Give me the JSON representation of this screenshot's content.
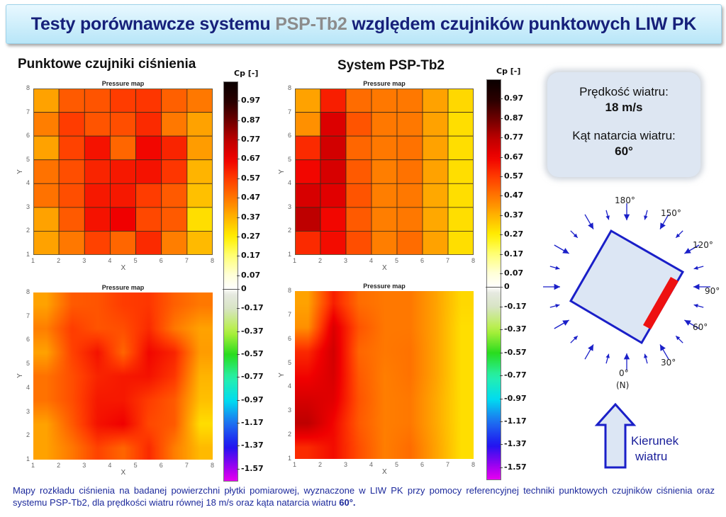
{
  "banner": {
    "title_part1": "Testy porównawcze systemu ",
    "title_highlight": "PSP-Tb2",
    "title_part2": " względem czujników punktowych LIW PK"
  },
  "left_panel": {
    "heading": "Punktowe czujniki ciśnienia"
  },
  "mid_panel": {
    "heading": "System PSP-Tb2"
  },
  "colorbar": {
    "title": "Cp [-]",
    "labels": [
      "0.97",
      "0.87",
      "0.77",
      "0.67",
      "0.57",
      "0.47",
      "0.37",
      "0.27",
      "0.17",
      "0.07",
      "0",
      "-0.17",
      "-0.37",
      "-0.57",
      "-0.77",
      "-0.97",
      "-1.17",
      "-1.37",
      "-1.57"
    ],
    "range": [
      -1.67,
      1.07
    ]
  },
  "info_box": {
    "speed_label": "Prędkość wiatru:",
    "speed_value": "18 m/s",
    "angle_label": "Kąt natarcia wiatru:",
    "angle_value": "60°"
  },
  "compass": {
    "labels": {
      "a180": "180°",
      "a150": "150°",
      "a120": "120°",
      "a90": "90°",
      "a60": "60°",
      "a30": "30°",
      "a0": "0°",
      "north": "(N)"
    },
    "plate_color": "#dce6f4",
    "edge_color": "#1a1fc8",
    "sensor_color": "#ee1111"
  },
  "wind_direction": {
    "line1": "Kierunek",
    "line2": "wiatru"
  },
  "caption": {
    "text": "Mapy rozkładu ciśnienia na badanej powierzchni płytki pomiarowej, wyznaczone w LIW PK przy pomocy referencyjnej techniki punktowych czujników ciśnienia oraz systemu PSP-Tb2, dla prędkości wiatru równej 18 m/s oraz kąta natarcia wiatru ",
    "bold": "60°."
  },
  "chart_data": [
    {
      "type": "heatmap",
      "title": "Pressure map",
      "panel": "Punktowe czujniki ciśnienia (grid)",
      "xlabel": "X",
      "ylabel": "Y",
      "xlim": [
        1,
        8
      ],
      "ylim": [
        1,
        8
      ],
      "x_ticks": [
        "1",
        "2",
        "3",
        "4",
        "5",
        "6",
        "7",
        "8"
      ],
      "y_ticks": [
        "1",
        "2",
        "3",
        "4",
        "5",
        "6",
        "7",
        "8"
      ],
      "rows_top_to_bottom": [
        [
          0.4,
          0.52,
          0.53,
          0.57,
          0.58,
          0.51,
          0.47
        ],
        [
          0.46,
          0.57,
          0.53,
          0.54,
          0.6,
          0.47,
          0.4
        ],
        [
          0.4,
          0.56,
          0.64,
          0.5,
          0.66,
          0.61,
          0.41
        ],
        [
          0.48,
          0.54,
          0.61,
          0.63,
          0.64,
          0.58,
          0.37
        ],
        [
          0.48,
          0.54,
          0.63,
          0.63,
          0.57,
          0.52,
          0.35
        ],
        [
          0.4,
          0.52,
          0.64,
          0.67,
          0.55,
          0.52,
          0.3
        ],
        [
          0.4,
          0.47,
          0.56,
          0.5,
          0.6,
          0.46,
          0.36
        ]
      ]
    },
    {
      "type": "heatmap",
      "title": "Pressure map",
      "panel": "System PSP-Tb2 (grid)",
      "xlabel": "X",
      "ylabel": "Y",
      "xlim": [
        1,
        8
      ],
      "ylim": [
        1,
        8
      ],
      "x_ticks": [
        "1",
        "2",
        "3",
        "4",
        "5",
        "6",
        "7",
        "8"
      ],
      "y_ticks": [
        "1",
        "2",
        "3",
        "4",
        "5",
        "6",
        "7",
        "8"
      ],
      "rows_top_to_bottom": [
        [
          0.4,
          0.62,
          0.49,
          0.47,
          0.47,
          0.4,
          0.31
        ],
        [
          0.43,
          0.71,
          0.53,
          0.47,
          0.47,
          0.4,
          0.3
        ],
        [
          0.6,
          0.73,
          0.5,
          0.47,
          0.48,
          0.4,
          0.3
        ],
        [
          0.66,
          0.72,
          0.52,
          0.46,
          0.48,
          0.4,
          0.3
        ],
        [
          0.72,
          0.7,
          0.53,
          0.46,
          0.47,
          0.39,
          0.3
        ],
        [
          0.77,
          0.66,
          0.52,
          0.46,
          0.47,
          0.39,
          0.3
        ],
        [
          0.6,
          0.65,
          0.54,
          0.46,
          0.49,
          0.4,
          0.3
        ]
      ]
    },
    {
      "type": "heatmap",
      "title": "Pressure map",
      "panel": "Punktowe czujniki ciśnienia (interpolated)",
      "xlabel": "X",
      "ylabel": "Y",
      "xlim": [
        1,
        8
      ],
      "ylim": [
        1,
        8
      ],
      "x_ticks": [
        "1",
        "2",
        "3",
        "4",
        "5",
        "6",
        "7",
        "8"
      ],
      "y_ticks": [
        "1",
        "2",
        "3",
        "4",
        "5",
        "6",
        "7",
        "8"
      ],
      "source": "interpolated from grid 1"
    },
    {
      "type": "heatmap",
      "title": "Pressure map",
      "panel": "System PSP-Tb2 (interpolated)",
      "xlabel": "X",
      "ylabel": "Y",
      "xlim": [
        1,
        8
      ],
      "ylim": [
        1,
        8
      ],
      "x_ticks": [
        "1",
        "2",
        "3",
        "4",
        "5",
        "6",
        "7",
        "8"
      ],
      "y_ticks": [
        "1",
        "2",
        "3",
        "4",
        "5",
        "6",
        "7",
        "8"
      ],
      "source": "interpolated from grid 2"
    }
  ]
}
